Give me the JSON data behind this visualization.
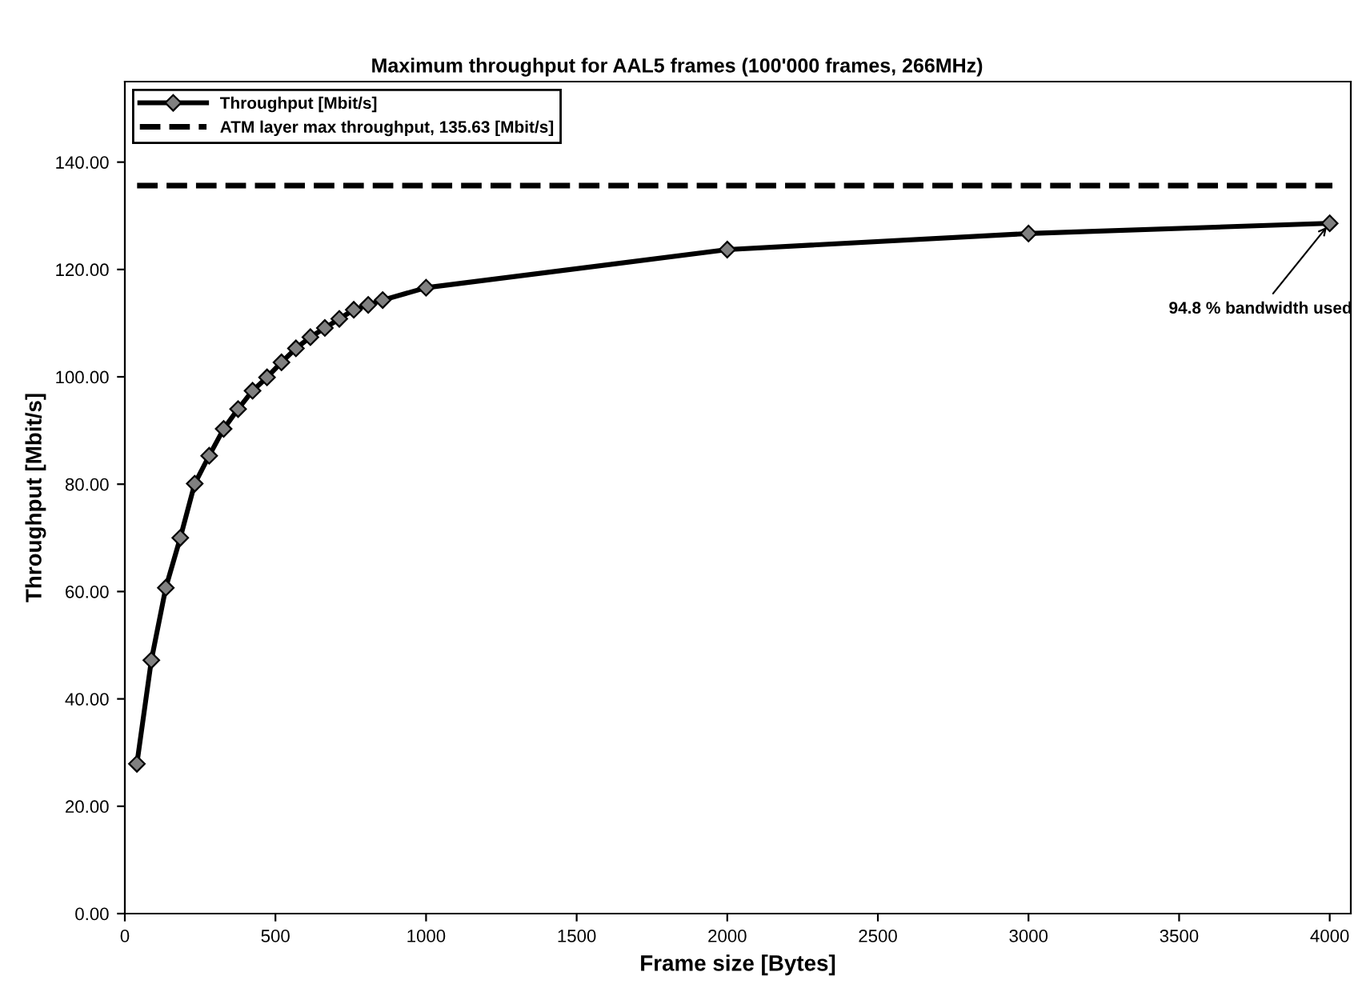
{
  "chart_data": {
    "type": "line",
    "title": "Maximum throughput for AAL5 frames (100'000 frames, 266MHz)",
    "xlabel": "Frame size [Bytes]",
    "ylabel": "Throughput [Mbit/s]",
    "series": [
      {
        "name": "Throughput [Mbit/s]",
        "color": "#000000",
        "x": [
          40,
          88,
          136,
          184,
          232,
          280,
          328,
          376,
          424,
          472,
          520,
          568,
          616,
          664,
          712,
          760,
          808,
          856,
          1000,
          2000,
          3000,
          4000
        ],
        "values": [
          27.9,
          47.2,
          60.7,
          70.0,
          80.1,
          85.3,
          90.3,
          94.0,
          97.4,
          99.9,
          102.7,
          105.3,
          107.4,
          109.1,
          110.8,
          112.5,
          113.4,
          114.3,
          116.6,
          123.7,
          126.7,
          128.6
        ]
      }
    ],
    "ref_lines": [
      {
        "axis": "y",
        "value": 135.63,
        "label": "ATM layer max throughput, 135.63 [Mbit/s]",
        "color": "#000000",
        "line_style": "dashed"
      }
    ],
    "annotations": [
      {
        "text": "94.8 % bandwidth used",
        "x": 4000,
        "y": 128.6
      }
    ],
    "xlim": [
      0,
      4070
    ],
    "ylim": [
      0,
      155
    ],
    "xticks": [
      0,
      500,
      1000,
      1500,
      2000,
      2500,
      3000,
      3500,
      4000
    ],
    "yticks": [
      {
        "value": 0,
        "label": "0.00"
      },
      {
        "value": 20,
        "label": "20.00"
      },
      {
        "value": 40,
        "label": "40.00"
      },
      {
        "value": 60,
        "label": "60.00"
      },
      {
        "value": 80,
        "label": "80.00"
      },
      {
        "value": 100,
        "label": "100.00"
      },
      {
        "value": 120,
        "label": "120.00"
      },
      {
        "value": 140,
        "label": "140.00"
      }
    ],
    "marker": "diamond",
    "line_style": "solid",
    "grid": false,
    "legend": "top left"
  }
}
